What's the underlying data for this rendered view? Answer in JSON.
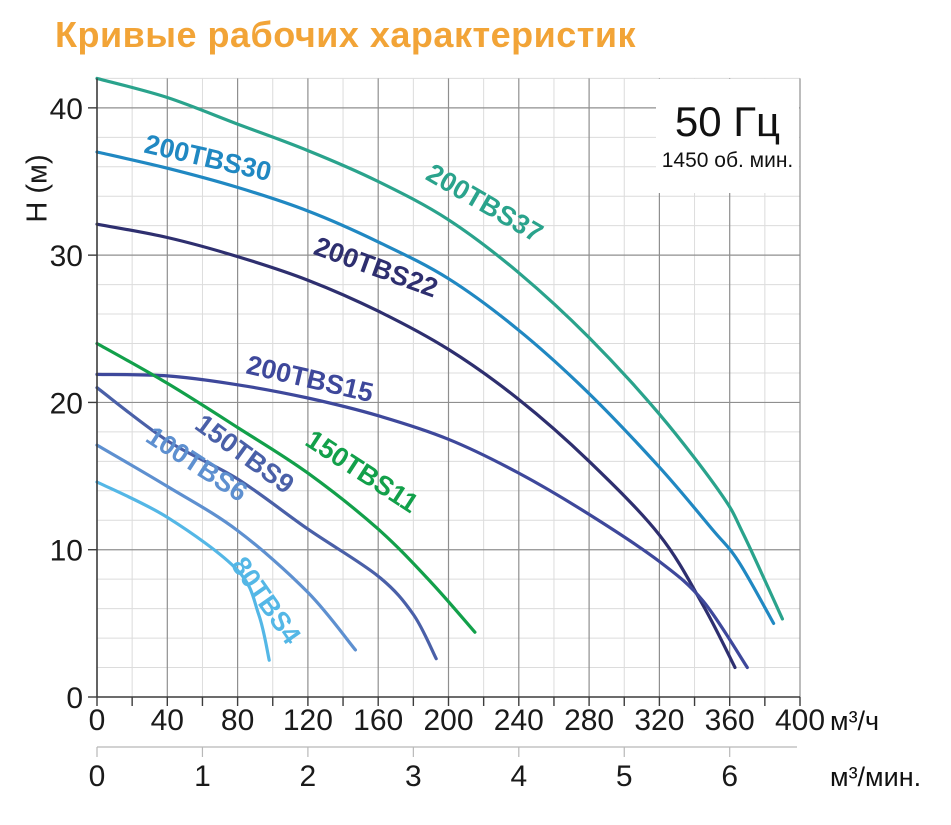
{
  "title": "Кривые рабочих характеристик",
  "annotation": {
    "frequency": "50 Гц",
    "speed": "1450 об. мин."
  },
  "colors": {
    "title": "#F2A437",
    "axis": "#3c3c3c",
    "grid_minor": "#dcdcdc",
    "grid_major": "#8f8f8f",
    "secondary_axis": "#b8b8b8",
    "text": "#1a1a1a"
  },
  "chart_data": {
    "type": "line",
    "title": "",
    "ylabel": "H (м)",
    "xlabel_primary": "м³/ч",
    "xlabel_secondary": "м³/мин.",
    "x_range": [
      0,
      400
    ],
    "y_range": [
      0,
      42
    ],
    "x_ticks_primary": [
      0,
      40,
      80,
      120,
      160,
      200,
      240,
      280,
      320,
      360,
      400
    ],
    "x_ticks_secondary": [
      0,
      1,
      2,
      3,
      4,
      5,
      6
    ],
    "y_ticks": [
      0,
      10,
      20,
      30,
      40
    ],
    "secondary_units_per_primary": 60,
    "grid": {
      "minor_x": 20,
      "major_x": 40,
      "minor_y": 2,
      "major_y": 10,
      "x_tick_marks_every": 20
    },
    "legend_position": "labels-on-curves",
    "series": [
      {
        "name": "200TBS37",
        "color": "#2AA38C",
        "label_pos": {
          "x": 218,
          "y": 33.0,
          "angle": 30
        },
        "points": [
          [
            0,
            42.0
          ],
          [
            40,
            40.7
          ],
          [
            80,
            38.9
          ],
          [
            120,
            37.1
          ],
          [
            160,
            35.0
          ],
          [
            200,
            32.4
          ],
          [
            240,
            28.8
          ],
          [
            280,
            24.4
          ],
          [
            320,
            19.2
          ],
          [
            355,
            13.8
          ],
          [
            368,
            11.0
          ],
          [
            390,
            5.3
          ]
        ]
      },
      {
        "name": "200TBS30",
        "color": "#2088C2",
        "label_pos": {
          "x": 62,
          "y": 36.0,
          "angle": 13
        },
        "points": [
          [
            0,
            37.0
          ],
          [
            40,
            35.9
          ],
          [
            80,
            34.6
          ],
          [
            120,
            33.0
          ],
          [
            160,
            30.9
          ],
          [
            200,
            28.4
          ],
          [
            240,
            24.9
          ],
          [
            280,
            20.6
          ],
          [
            320,
            15.6
          ],
          [
            350,
            11.4
          ],
          [
            365,
            9.2
          ],
          [
            385,
            5.0
          ]
        ]
      },
      {
        "name": "200TBS22",
        "color": "#2E2F6F",
        "label_pos": {
          "x": 157,
          "y": 28.6,
          "angle": 20
        },
        "points": [
          [
            0,
            32.1
          ],
          [
            40,
            31.2
          ],
          [
            80,
            29.9
          ],
          [
            120,
            28.3
          ],
          [
            160,
            26.2
          ],
          [
            200,
            23.6
          ],
          [
            240,
            20.2
          ],
          [
            280,
            16.0
          ],
          [
            320,
            11.0
          ],
          [
            345,
            6.2
          ],
          [
            363,
            2.0
          ]
        ]
      },
      {
        "name": "200TBS15",
        "color": "#3E489B",
        "label_pos": {
          "x": 120,
          "y": 21.0,
          "angle": 13
        },
        "points": [
          [
            0,
            21.9
          ],
          [
            40,
            21.8
          ],
          [
            80,
            21.2
          ],
          [
            120,
            20.3
          ],
          [
            160,
            19.1
          ],
          [
            200,
            17.5
          ],
          [
            240,
            15.2
          ],
          [
            280,
            12.4
          ],
          [
            320,
            9.2
          ],
          [
            345,
            6.5
          ],
          [
            370,
            2.0
          ]
        ]
      },
      {
        "name": "150TBS11",
        "color": "#12A04A",
        "label_pos": {
          "x": 148,
          "y": 14.8,
          "angle": 33
        },
        "points": [
          [
            0,
            24.0
          ],
          [
            40,
            21.3
          ],
          [
            80,
            18.3
          ],
          [
            120,
            15.2
          ],
          [
            160,
            11.4
          ],
          [
            190,
            7.8
          ],
          [
            215,
            4.4
          ]
        ]
      },
      {
        "name": "150TBS9",
        "color": "#4A60A8",
        "label_pos": {
          "x": 81,
          "y": 16.0,
          "angle": 36
        },
        "points": [
          [
            0,
            21.0
          ],
          [
            40,
            17.4
          ],
          [
            80,
            14.8
          ],
          [
            120,
            11.4
          ],
          [
            160,
            8.2
          ],
          [
            180,
            5.6
          ],
          [
            193,
            2.6
          ]
        ]
      },
      {
        "name": "100TBS6",
        "color": "#5E90D0",
        "label_pos": {
          "x": 54,
          "y": 15.3,
          "angle": 33
        },
        "points": [
          [
            0,
            17.1
          ],
          [
            40,
            14.3
          ],
          [
            80,
            11.3
          ],
          [
            120,
            7.1
          ],
          [
            147,
            3.2
          ]
        ]
      },
      {
        "name": "80TBS4",
        "color": "#54B7E6",
        "label_pos": {
          "x": 92,
          "y": 6.2,
          "angle": 55
        },
        "points": [
          [
            0,
            14.6
          ],
          [
            40,
            12.2
          ],
          [
            80,
            8.6
          ],
          [
            92,
            5.6
          ],
          [
            98,
            2.5
          ]
        ]
      }
    ]
  }
}
